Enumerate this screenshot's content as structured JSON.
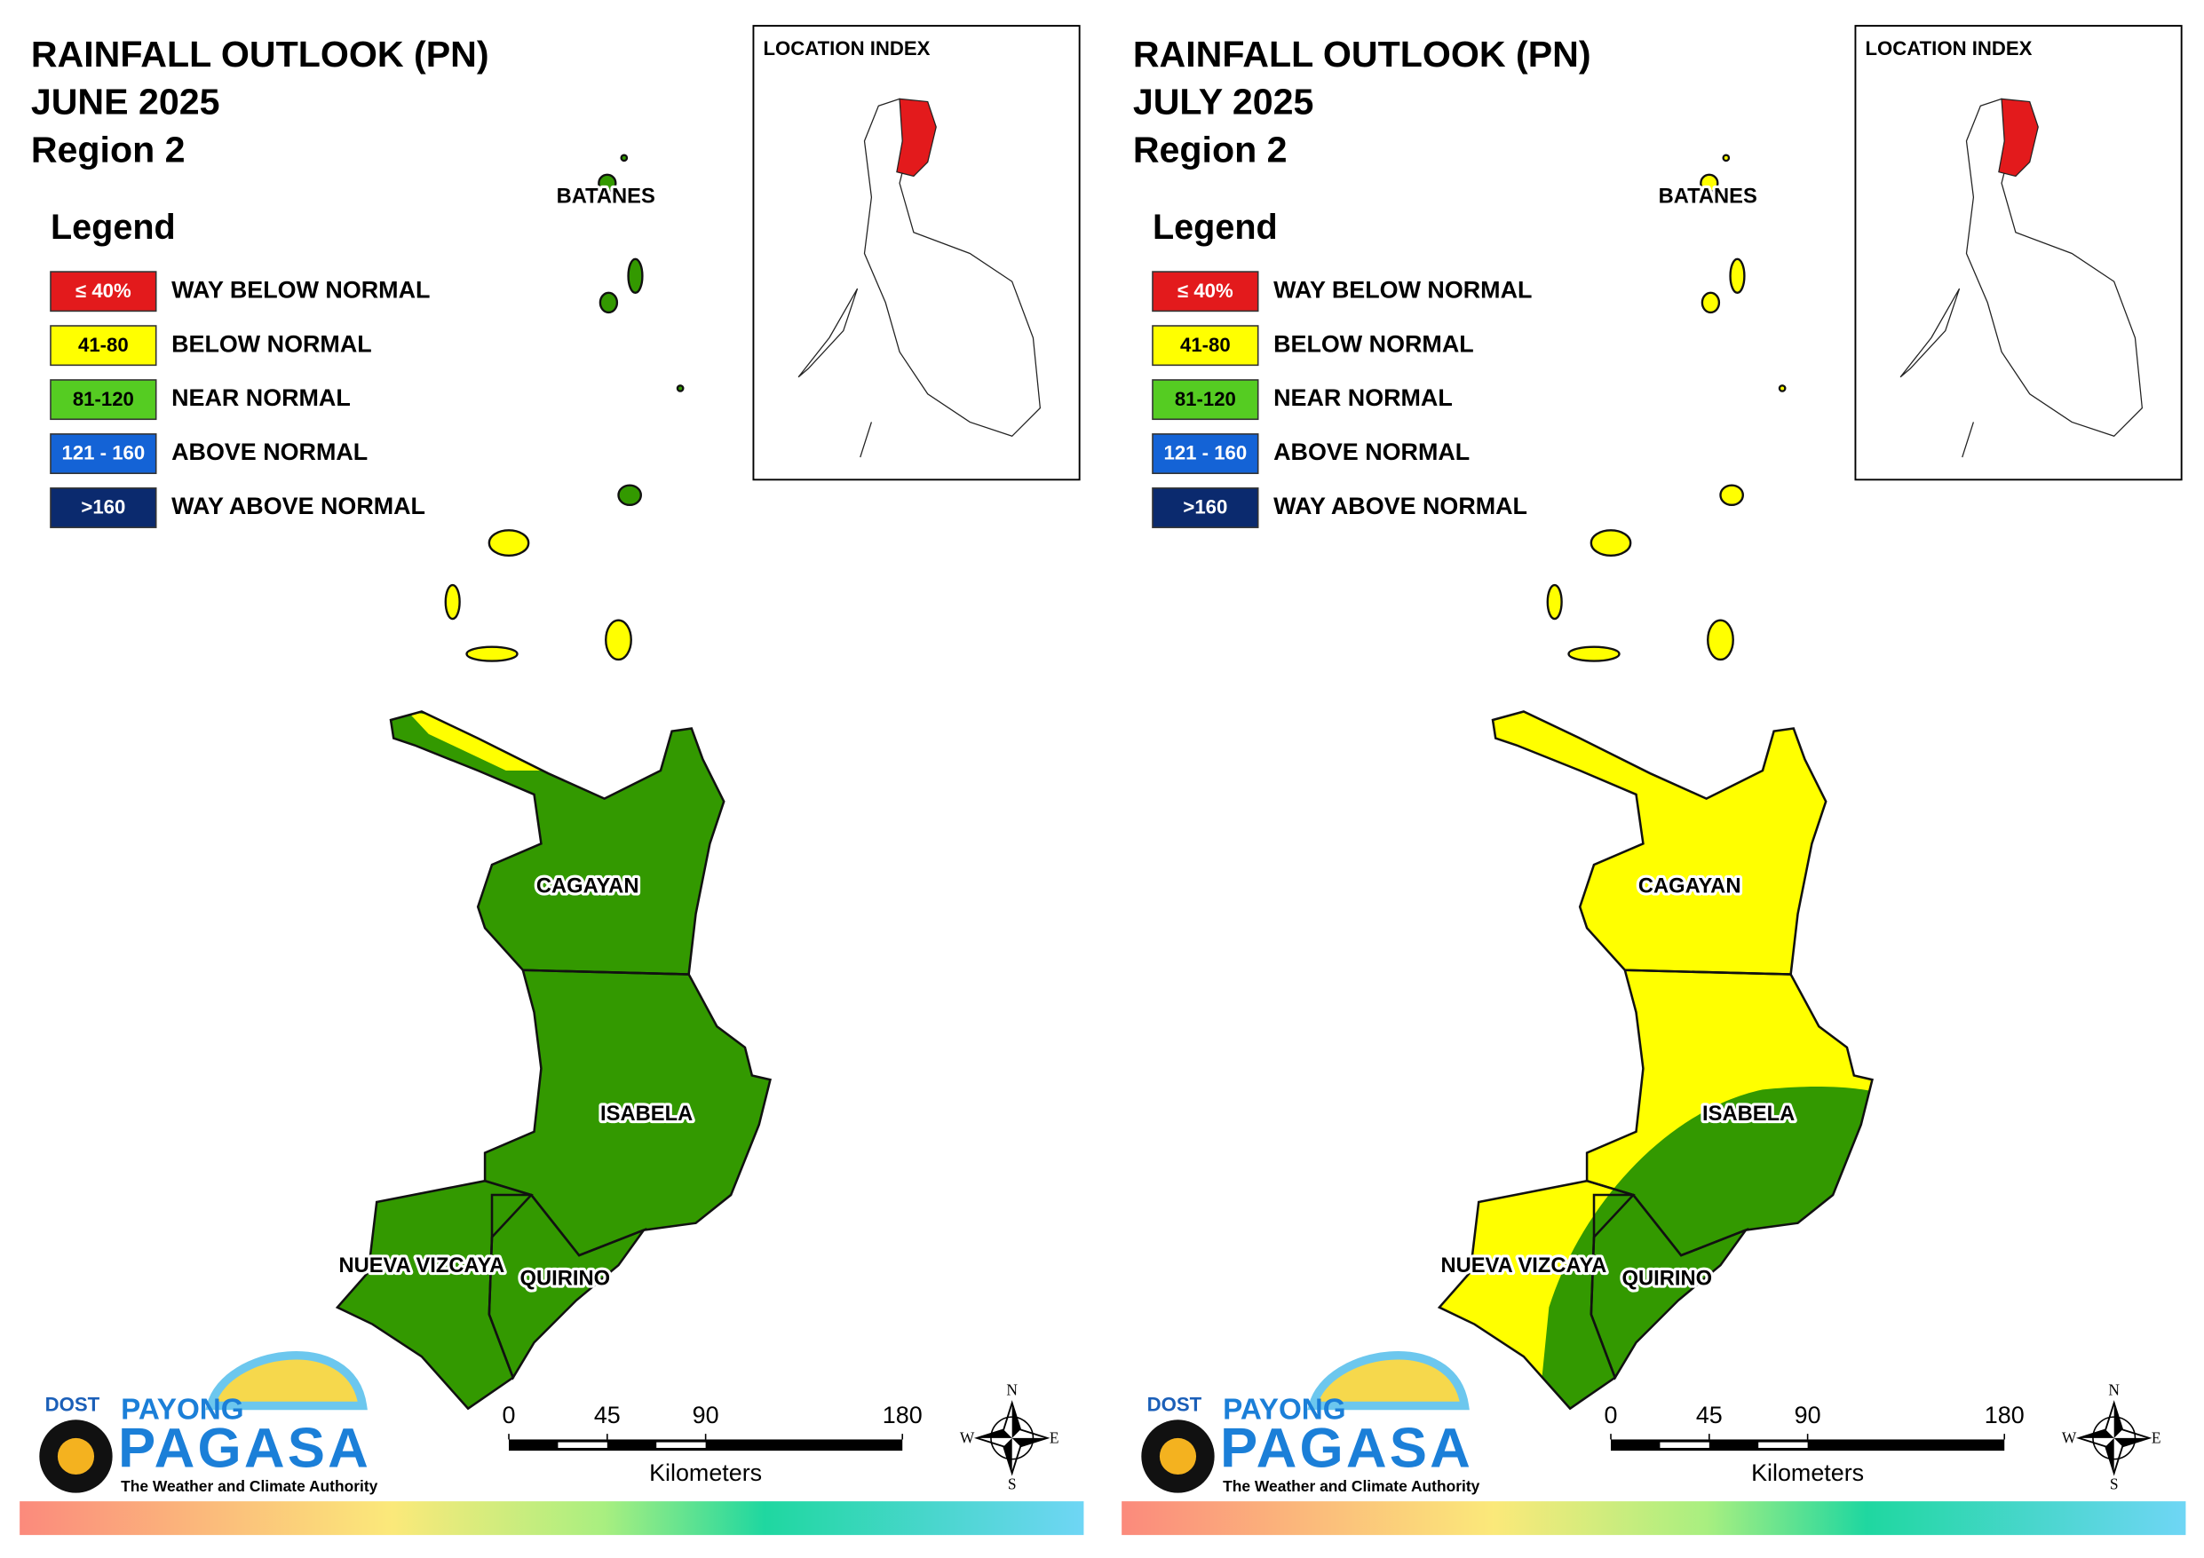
{
  "panels": [
    {
      "title": [
        "RAINFALL OUTLOOK (PN)",
        "JUNE 2025",
        "Region 2"
      ],
      "legend_title": "Legend",
      "legend": [
        {
          "range": "≤ 40%",
          "label": "WAY BELOW NORMAL",
          "color": "#e31a1c"
        },
        {
          "range": "41-80",
          "label": "BELOW NORMAL",
          "color": "#ffff00"
        },
        {
          "range": "81-120",
          "label": "NEAR NORMAL",
          "color": "#55cc22"
        },
        {
          "range": "121 - 160",
          "label": "ABOVE NORMAL",
          "color": "#1463d6"
        },
        {
          "range": ">160",
          "label": "WAY ABOVE NORMAL",
          "color": "#0b2a6e"
        }
      ],
      "location_index": "LOCATION INDEX",
      "islands_label": "BATANES",
      "provinces": [
        "CAGAYAN",
        "ISABELA",
        "NUEVA VIZCAYA",
        "QUIRINO"
      ],
      "scale": {
        "ticks": [
          0,
          45,
          90,
          180
        ],
        "unit": "Kilometers"
      },
      "compass": [
        "N",
        "E",
        "S",
        "W"
      ],
      "logo": {
        "agency": "DOST",
        "brand_top": "PAYONG",
        "brand": "PAGASA",
        "tagline": "The Weather and Climate Authority"
      }
    },
    {
      "title": [
        "RAINFALL OUTLOOK (PN)",
        "JULY 2025",
        "Region 2"
      ],
      "legend_title": "Legend",
      "legend": [
        {
          "range": "≤ 40%",
          "label": "WAY BELOW NORMAL",
          "color": "#e31a1c"
        },
        {
          "range": "41-80",
          "label": "BELOW NORMAL",
          "color": "#ffff00"
        },
        {
          "range": "81-120",
          "label": "NEAR NORMAL",
          "color": "#55cc22"
        },
        {
          "range": "121 - 160",
          "label": "ABOVE NORMAL",
          "color": "#1463d6"
        },
        {
          "range": ">160",
          "label": "WAY ABOVE NORMAL",
          "color": "#0b2a6e"
        }
      ],
      "location_index": "LOCATION INDEX",
      "islands_label": "BATANES",
      "provinces": [
        "CAGAYAN",
        "ISABELA",
        "NUEVA VIZCAYA",
        "QUIRINO"
      ],
      "scale": {
        "ticks": [
          0,
          45,
          90,
          180
        ],
        "unit": "Kilometers"
      },
      "compass": [
        "N",
        "E",
        "S",
        "W"
      ],
      "logo": {
        "agency": "DOST",
        "brand_top": "PAYONG",
        "brand": "PAGASA",
        "tagline": "The Weather and Climate Authority"
      }
    }
  ]
}
